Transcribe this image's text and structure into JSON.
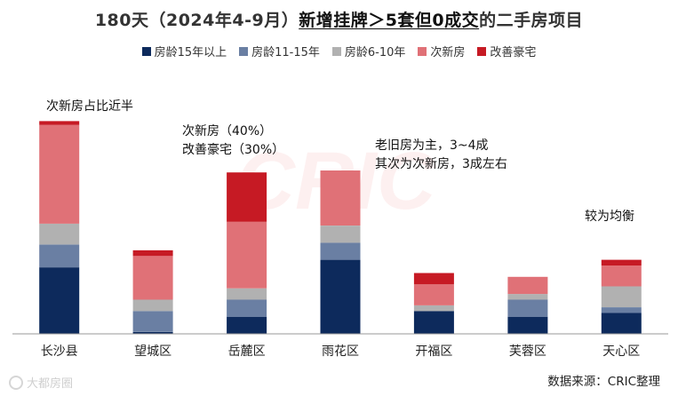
{
  "title": {
    "prefix": "180天（2024年4-9月）",
    "highlight": "新增挂牌＞5套但0成交",
    "suffix": "的二手房项目"
  },
  "colors": {
    "age_15_plus": "#0d2a5c",
    "age_11_15": "#6a7fa3",
    "age_6_10": "#b1b1b1",
    "new_ish": "#e07177",
    "luxury": "#c61a24"
  },
  "annotations": {
    "changsha": "次新房占比近半",
    "yuelu_line1": "次新房（40%）",
    "yuelu_line2": "改善豪宅（30%）",
    "kaifu_line1": "老旧房为主，3~4成",
    "kaifu_line2": "其次为次新房，3成左右",
    "tianxin": "较为均衡"
  },
  "source": "数据来源：CRIC整理",
  "watermark": "大都房圈",
  "chart_data": {
    "type": "bar",
    "stacked": true,
    "categories": [
      "长沙县",
      "望城区",
      "岳麓区",
      "雨花区",
      "开福区",
      "芙蓉区",
      "天心区"
    ],
    "series": [
      {
        "name": "房龄15年以上",
        "color": "#0d2a5c",
        "values": [
          35,
          1,
          9,
          39,
          12,
          9,
          11
        ]
      },
      {
        "name": "房龄11-15年",
        "color": "#6a7fa3",
        "values": [
          12,
          11,
          9,
          9,
          0,
          9,
          3
        ]
      },
      {
        "name": "房龄6-10年",
        "color": "#b1b1b1",
        "values": [
          11,
          6,
          6,
          9,
          3,
          3,
          11
        ]
      },
      {
        "name": "次新房",
        "color": "#e07177",
        "values": [
          52,
          23,
          35,
          29,
          11,
          9,
          11
        ]
      },
      {
        "name": "改善豪宅",
        "color": "#c61a24",
        "values": [
          2,
          3,
          26,
          0,
          6,
          0,
          3
        ]
      }
    ],
    "ylim": [
      0,
      115
    ],
    "grid": false,
    "legend_position": "top"
  }
}
